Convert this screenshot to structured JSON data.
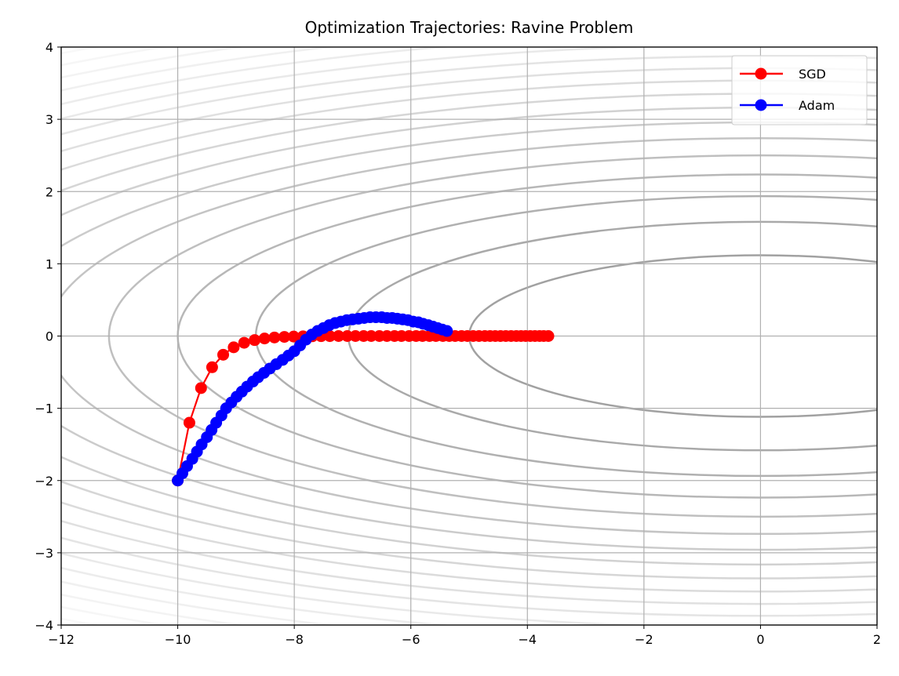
{
  "chart_data": {
    "type": "line",
    "title": "Optimization Trajectories: Ravine Problem",
    "xlabel": "",
    "ylabel": "",
    "xlim": [
      -12,
      2
    ],
    "ylim": [
      -4,
      4
    ],
    "xticks": [
      -12,
      -10,
      -8,
      -6,
      -4,
      -2,
      0,
      2
    ],
    "yticks": [
      -4,
      -3,
      -2,
      -1,
      0,
      1,
      2,
      3,
      4
    ],
    "xtick_labels": [
      "−12",
      "−10",
      "−8",
      "−6",
      "−4",
      "−2",
      "0",
      "2"
    ],
    "ytick_labels": [
      "−4",
      "−3",
      "−2",
      "−1",
      "0",
      "1",
      "2",
      "3",
      "4"
    ],
    "grid": true,
    "legend_position": "top-right",
    "background_contours": {
      "function": "x^2 + 20*y^2",
      "levels": [
        25,
        50,
        75,
        100,
        125,
        150,
        175,
        200,
        225,
        250,
        275,
        300,
        325,
        350,
        375,
        400,
        425,
        450
      ],
      "colormap": "greys (inner darker)"
    },
    "series": [
      {
        "name": "SGD",
        "color": "#ff0000",
        "marker": "circle",
        "x": [
          -10.0,
          -9.8,
          -9.6,
          -9.41,
          -9.22,
          -9.04,
          -8.86,
          -8.68,
          -8.51,
          -8.34,
          -8.17,
          -8.01,
          -7.85,
          -7.69,
          -7.54,
          -7.39,
          -7.24,
          -7.09,
          -6.95,
          -6.81,
          -6.68,
          -6.54,
          -6.41,
          -6.28,
          -6.16,
          -6.03,
          -5.91,
          -5.8,
          -5.68,
          -5.57,
          -5.45,
          -5.34,
          -5.24,
          -5.13,
          -5.03,
          -4.93,
          -4.83,
          -4.73,
          -4.64,
          -4.55,
          -4.46,
          -4.37,
          -4.28,
          -4.19,
          -4.11,
          -4.03,
          -3.95,
          -3.87,
          -3.79,
          -3.72,
          -3.64
        ],
        "y": [
          -2.0,
          -1.2,
          -0.72,
          -0.432,
          -0.259,
          -0.156,
          -0.093,
          -0.056,
          -0.034,
          -0.02,
          -0.012,
          -0.007,
          -0.004,
          -0.003,
          -0.002,
          -0.001,
          0,
          0,
          0,
          0,
          0,
          0,
          0,
          0,
          0,
          0,
          0,
          0,
          0,
          0,
          0,
          0,
          0,
          0,
          0,
          0,
          0,
          0,
          0,
          0,
          0,
          0,
          0,
          0,
          0,
          0,
          0,
          0,
          0,
          0,
          0
        ]
      },
      {
        "name": "Adam",
        "color": "#0000ff",
        "marker": "circle",
        "x": [
          -10.0,
          -9.92,
          -9.84,
          -9.75,
          -9.67,
          -9.59,
          -9.5,
          -9.42,
          -9.34,
          -9.25,
          -9.17,
          -9.08,
          -8.99,
          -8.9,
          -8.81,
          -8.71,
          -8.62,
          -8.52,
          -8.42,
          -8.31,
          -8.2,
          -8.1,
          -8.0,
          -7.9,
          -7.8,
          -7.7,
          -7.6,
          -7.5,
          -7.4,
          -7.3,
          -7.2,
          -7.1,
          -7.0,
          -6.9,
          -6.8,
          -6.7,
          -6.6,
          -6.5,
          -6.41,
          -6.32,
          -6.23,
          -6.14,
          -6.05,
          -5.96,
          -5.87,
          -5.79,
          -5.7,
          -5.62,
          -5.54,
          -5.46,
          -5.38
        ],
        "y": [
          -2.0,
          -1.9,
          -1.8,
          -1.7,
          -1.6,
          -1.5,
          -1.4,
          -1.3,
          -1.2,
          -1.1,
          -1.0,
          -0.92,
          -0.84,
          -0.77,
          -0.7,
          -0.63,
          -0.57,
          -0.51,
          -0.45,
          -0.39,
          -0.33,
          -0.27,
          -0.21,
          -0.13,
          -0.05,
          0.02,
          0.07,
          0.11,
          0.15,
          0.18,
          0.2,
          0.22,
          0.23,
          0.24,
          0.25,
          0.26,
          0.26,
          0.26,
          0.25,
          0.25,
          0.24,
          0.23,
          0.22,
          0.2,
          0.19,
          0.17,
          0.15,
          0.13,
          0.11,
          0.09,
          0.07
        ]
      }
    ]
  }
}
